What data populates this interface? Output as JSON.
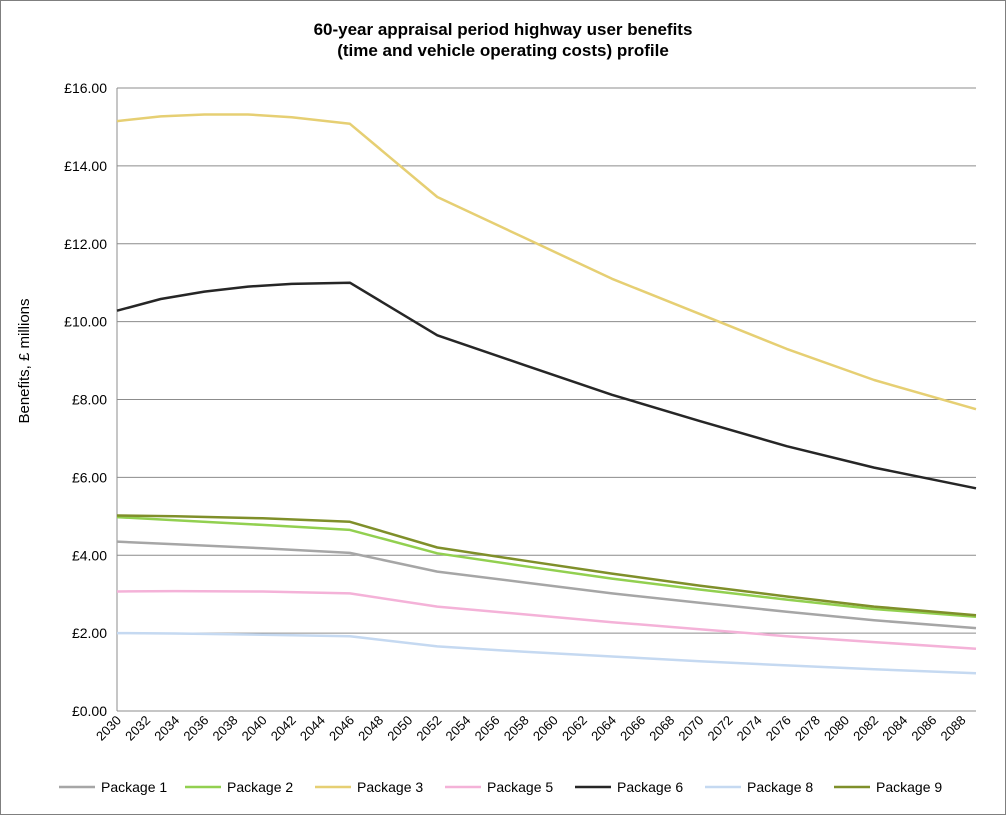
{
  "chart_data": {
    "type": "line",
    "title_line1": "60-year appraisal period highway user benefits",
    "title_line2": "(time and vehicle operating costs) profile",
    "xlabel": "",
    "ylabel": "Benefits, £ millions",
    "ylim": [
      0,
      16
    ],
    "ytick_values": [
      0,
      2,
      4,
      6,
      8,
      10,
      12,
      14,
      16
    ],
    "ytick_labels": [
      "£0.00",
      "£2.00",
      "£4.00",
      "£6.00",
      "£8.00",
      "£10.00",
      "£12.00",
      "£14.00",
      "£16.00"
    ],
    "x_start": 2030,
    "x_end": 2089,
    "xtick_labels": [
      "2030",
      "2032",
      "2034",
      "2036",
      "2038",
      "2040",
      "2042",
      "2044",
      "2046",
      "2048",
      "2050",
      "2052",
      "2054",
      "2056",
      "2058",
      "2060",
      "2062",
      "2064",
      "2066",
      "2068",
      "2070",
      "2072",
      "2074",
      "2076",
      "2078",
      "2080",
      "2082",
      "2084",
      "2086",
      "2088"
    ],
    "grid": true,
    "legend_position": "bottom",
    "series": [
      {
        "name": "Package 1",
        "color": "#a6a6a6",
        "points": [
          [
            2030,
            4.35
          ],
          [
            2034,
            4.28
          ],
          [
            2040,
            4.18
          ],
          [
            2046,
            4.06
          ],
          [
            2052,
            3.58
          ],
          [
            2058,
            3.3
          ],
          [
            2064,
            3.02
          ],
          [
            2070,
            2.78
          ],
          [
            2076,
            2.55
          ],
          [
            2082,
            2.33
          ],
          [
            2089,
            2.13
          ]
        ]
      },
      {
        "name": "Package 2",
        "color": "#92d050",
        "points": [
          [
            2030,
            4.98
          ],
          [
            2034,
            4.9
          ],
          [
            2040,
            4.78
          ],
          [
            2046,
            4.65
          ],
          [
            2052,
            4.05
          ],
          [
            2058,
            3.72
          ],
          [
            2064,
            3.4
          ],
          [
            2070,
            3.12
          ],
          [
            2076,
            2.86
          ],
          [
            2082,
            2.62
          ],
          [
            2089,
            2.42
          ]
        ]
      },
      {
        "name": "Package 3",
        "color": "#e6cf73",
        "points": [
          [
            2030,
            15.15
          ],
          [
            2033,
            15.27
          ],
          [
            2036,
            15.32
          ],
          [
            2039,
            15.32
          ],
          [
            2042,
            15.25
          ],
          [
            2046,
            15.08
          ],
          [
            2052,
            13.2
          ],
          [
            2058,
            12.15
          ],
          [
            2064,
            11.1
          ],
          [
            2070,
            10.2
          ],
          [
            2076,
            9.3
          ],
          [
            2082,
            8.5
          ],
          [
            2089,
            7.75
          ]
        ]
      },
      {
        "name": "Package 5",
        "color": "#f4b2d8",
        "points": [
          [
            2030,
            3.07
          ],
          [
            2034,
            3.08
          ],
          [
            2040,
            3.07
          ],
          [
            2046,
            3.02
          ],
          [
            2052,
            2.68
          ],
          [
            2058,
            2.48
          ],
          [
            2064,
            2.28
          ],
          [
            2070,
            2.1
          ],
          [
            2076,
            1.92
          ],
          [
            2082,
            1.77
          ],
          [
            2089,
            1.6
          ]
        ]
      },
      {
        "name": "Package 6",
        "color": "#262626",
        "points": [
          [
            2030,
            10.28
          ],
          [
            2033,
            10.58
          ],
          [
            2036,
            10.77
          ],
          [
            2039,
            10.9
          ],
          [
            2042,
            10.97
          ],
          [
            2046,
            11.0
          ],
          [
            2052,
            9.65
          ],
          [
            2058,
            8.88
          ],
          [
            2064,
            8.12
          ],
          [
            2070,
            7.45
          ],
          [
            2076,
            6.8
          ],
          [
            2082,
            6.25
          ],
          [
            2089,
            5.72
          ]
        ]
      },
      {
        "name": "Package 8",
        "color": "#c5d9f1",
        "points": [
          [
            2030,
            2.0
          ],
          [
            2034,
            1.99
          ],
          [
            2040,
            1.96
          ],
          [
            2046,
            1.92
          ],
          [
            2052,
            1.66
          ],
          [
            2058,
            1.52
          ],
          [
            2064,
            1.4
          ],
          [
            2070,
            1.28
          ],
          [
            2076,
            1.17
          ],
          [
            2082,
            1.07
          ],
          [
            2089,
            0.97
          ]
        ]
      },
      {
        "name": "Package 9",
        "color": "#7f8f2a",
        "points": [
          [
            2030,
            5.02
          ],
          [
            2034,
            5.0
          ],
          [
            2040,
            4.95
          ],
          [
            2046,
            4.86
          ],
          [
            2052,
            4.2
          ],
          [
            2058,
            3.86
          ],
          [
            2064,
            3.53
          ],
          [
            2070,
            3.22
          ],
          [
            2076,
            2.94
          ],
          [
            2082,
            2.68
          ],
          [
            2089,
            2.46
          ]
        ]
      }
    ]
  }
}
